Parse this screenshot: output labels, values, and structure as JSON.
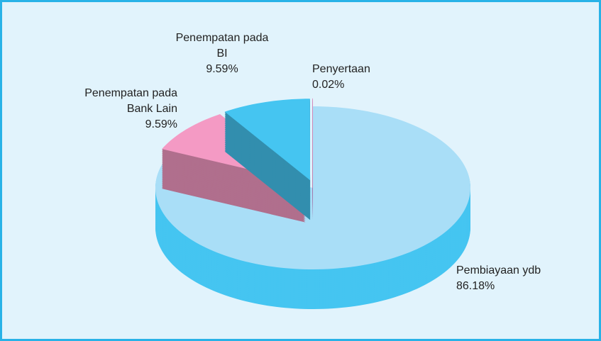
{
  "chart_data": {
    "type": "pie3d",
    "categories": [
      "Pembiayaan ydb",
      "Penempatan pada Bank Lain",
      "Penempatan pada BI",
      "Penyertaan"
    ],
    "values": [
      86.18,
      9.59,
      9.59,
      0.02
    ],
    "value_labels": [
      "86.18%",
      "9.59%",
      "9.59%",
      "0.02%"
    ],
    "colors": [
      "#a9def7",
      "#f49ac4",
      "#45c5f1",
      "#e2208a"
    ]
  }
}
